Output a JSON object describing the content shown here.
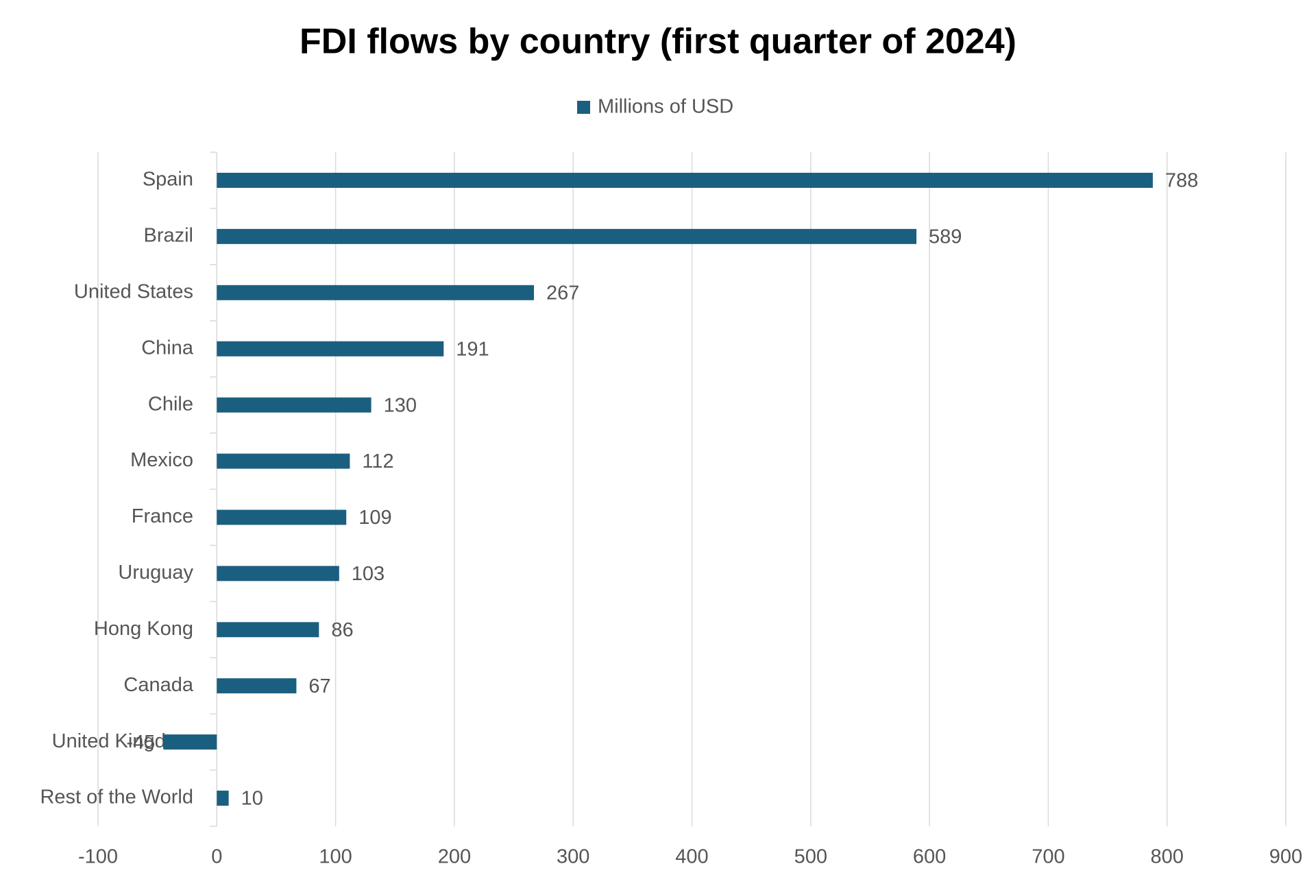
{
  "chart_data": {
    "type": "bar",
    "orientation": "horizontal",
    "title": "FDI flows by country (first quarter of 2024)",
    "categories": [
      "Spain",
      "Brazil",
      "United States",
      "China",
      "Chile",
      "Mexico",
      "France",
      "Uruguay",
      "Hong Kong",
      "Canada",
      "United Kingdom",
      "Rest of the World"
    ],
    "series": [
      {
        "name": "Millions of USD",
        "color": "#1b5f80",
        "values": [
          788,
          589,
          267,
          191,
          130,
          112,
          109,
          103,
          86,
          67,
          -45,
          10
        ]
      }
    ],
    "xlim": [
      -100,
      900
    ],
    "xticks": [
      -100,
      0,
      100,
      200,
      300,
      400,
      500,
      600,
      700,
      800,
      900
    ],
    "grid": true,
    "legend": "top"
  }
}
